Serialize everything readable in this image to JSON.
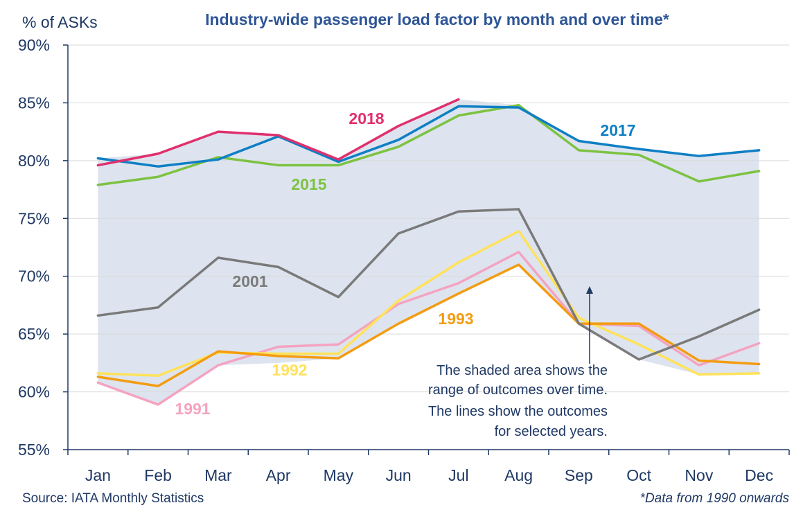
{
  "chart_data": {
    "type": "line",
    "title": "Industry-wide passenger load factor by month and over time*",
    "ylabel": "% of ASKs",
    "xlabel": "",
    "ylim": [
      55,
      90
    ],
    "ytick_values": [
      55,
      60,
      65,
      70,
      75,
      80,
      85,
      90
    ],
    "ytick_labels": [
      "55%",
      "60%",
      "65%",
      "70%",
      "75%",
      "80%",
      "85%",
      "90%"
    ],
    "categories": [
      "Jan",
      "Feb",
      "Mar",
      "Apr",
      "May",
      "Jun",
      "Jul",
      "Aug",
      "Sep",
      "Oct",
      "Nov",
      "Dec"
    ],
    "grid": "horizontal",
    "range_band": {
      "upper": [
        80.2,
        80.6,
        82.5,
        82.2,
        80.1,
        83.0,
        85.3,
        84.8,
        81.7,
        81.0,
        80.4,
        80.9
      ],
      "lower": [
        60.8,
        58.9,
        62.3,
        62.5,
        62.9,
        65.8,
        68.5,
        70.9,
        65.8,
        62.8,
        61.5,
        61.6
      ],
      "color": "#dde4ef"
    },
    "series": [
      {
        "name": "2018",
        "color": "#e0306e",
        "values": [
          79.6,
          80.6,
          82.5,
          82.2,
          80.1,
          83.0,
          85.3,
          null,
          null,
          null,
          null,
          null
        ]
      },
      {
        "name": "2017",
        "color": "#0f7fc4",
        "values": [
          80.2,
          79.5,
          80.1,
          82.1,
          79.9,
          81.8,
          84.7,
          84.6,
          81.7,
          81.0,
          80.4,
          80.9
        ]
      },
      {
        "name": "2015",
        "color": "#7dc242",
        "values": [
          77.9,
          78.6,
          80.3,
          79.6,
          79.6,
          81.2,
          83.9,
          84.8,
          80.9,
          80.5,
          78.2,
          79.1
        ]
      },
      {
        "name": "2001",
        "color": "#7a7a7a",
        "values": [
          66.6,
          67.3,
          71.6,
          70.8,
          68.2,
          73.7,
          75.6,
          75.8,
          65.9,
          62.8,
          64.8,
          67.1
        ]
      },
      {
        "name": "1992",
        "color": "#ffe25a",
        "values": [
          61.6,
          61.4,
          63.4,
          63.3,
          63.3,
          67.9,
          71.2,
          73.9,
          66.4,
          64.1,
          61.5,
          61.6
        ]
      },
      {
        "name": "1991",
        "color": "#f4a3c0",
        "values": [
          60.8,
          58.9,
          62.3,
          63.9,
          64.1,
          67.6,
          69.4,
          72.1,
          65.9,
          65.7,
          62.3,
          64.2
        ]
      },
      {
        "name": "1993",
        "color": "#f39c12",
        "values": [
          61.3,
          60.5,
          63.5,
          63.1,
          62.9,
          65.9,
          68.5,
          71.0,
          65.9,
          65.9,
          62.7,
          62.4
        ]
      }
    ],
    "series_label_order": [
      "2018",
      "2017",
      "2015",
      "2001",
      "1993",
      "1992",
      "1991"
    ],
    "annotation_lines": [
      "The shaded area shows the",
      "range of outcomes over time.",
      "The lines show the outcomes",
      "for selected years."
    ],
    "source": "Source: IATA Monthly Statistics",
    "footnote": "*Data from 1990 onwards"
  },
  "colors": {
    "axis": "#1f3864",
    "text": "#1f3864",
    "title": "#2e5597",
    "grid": "#d9d9d9"
  }
}
